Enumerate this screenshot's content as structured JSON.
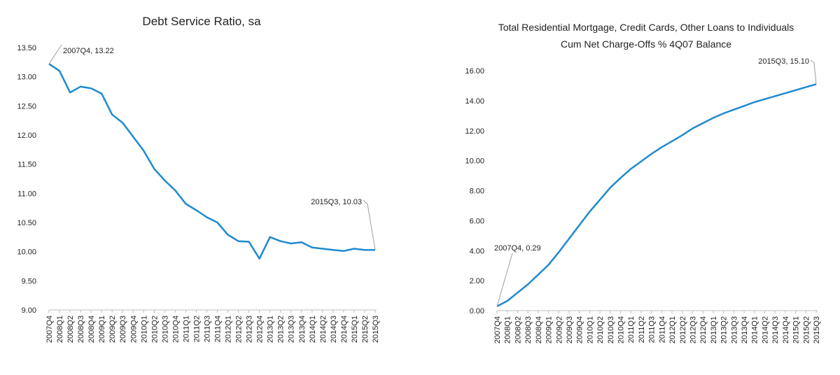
{
  "chart_data": [
    {
      "type": "line",
      "title": "Debt Service Ratio, sa",
      "xlabel": "",
      "ylabel": "",
      "ylim": [
        9.0,
        13.5
      ],
      "yticks": [
        "9.00",
        "9.50",
        "10.00",
        "10.50",
        "11.00",
        "11.50",
        "12.00",
        "12.50",
        "13.00",
        "13.50"
      ],
      "categories": [
        "2007Q4",
        "2008Q1",
        "2008Q2",
        "2008Q3",
        "2008Q4",
        "2009Q1",
        "2009Q2",
        "2009Q3",
        "2009Q4",
        "2010Q1",
        "2010Q2",
        "2010Q3",
        "2010Q4",
        "2011Q1",
        "2011Q2",
        "2011Q3",
        "2011Q4",
        "2012Q1",
        "2012Q2",
        "2012Q3",
        "2012Q4",
        "2013Q1",
        "2013Q2",
        "2013Q3",
        "2013Q4",
        "2014Q1",
        "2014Q2",
        "2014Q3",
        "2014Q4",
        "2015Q1",
        "2015Q2",
        "2015Q3"
      ],
      "values": [
        13.22,
        13.1,
        12.73,
        12.83,
        12.8,
        12.71,
        12.35,
        12.21,
        11.97,
        11.73,
        11.42,
        11.22,
        11.05,
        10.82,
        10.71,
        10.59,
        10.5,
        10.29,
        10.18,
        10.17,
        9.88,
        10.25,
        10.18,
        10.14,
        10.16,
        10.07,
        10.05,
        10.03,
        10.01,
        10.05,
        10.03,
        10.03
      ],
      "color": "#1f8ad0",
      "grid": false,
      "annotations": [
        {
          "label": "2007Q4, 13.22",
          "index": 0
        },
        {
          "label": "2015Q3, 10.03",
          "index": 31
        }
      ]
    },
    {
      "type": "line",
      "title": "Total Residential Mortgage, Credit Cards, Other Loans to Individuals",
      "subtitle": "Cum Net Charge-Offs % 4Q07 Balance",
      "xlabel": "",
      "ylabel": "",
      "ylim": [
        0.0,
        16.0
      ],
      "yticks": [
        "0.00",
        "2.00",
        "4.00",
        "6.00",
        "8.00",
        "10.00",
        "12.00",
        "14.00",
        "16.00"
      ],
      "categories": [
        "2007Q4",
        "2008Q1",
        "2008Q2",
        "2008Q3",
        "2008Q4",
        "2009Q1",
        "2009Q2",
        "2009Q3",
        "2009Q4",
        "2010Q1",
        "2010Q2",
        "2010Q3",
        "2010Q4",
        "2011Q1",
        "2011Q2",
        "2011Q3",
        "2011Q4",
        "2012Q1",
        "2012Q2",
        "2012Q3",
        "2012Q4",
        "2013Q1",
        "2013Q2",
        "2013Q3",
        "2013Q4",
        "2014Q1",
        "2014Q2",
        "2014Q3",
        "2014Q4",
        "2015Q1",
        "2015Q2",
        "2015Q3"
      ],
      "values": [
        0.29,
        0.65,
        1.2,
        1.75,
        2.4,
        3.05,
        3.9,
        4.8,
        5.7,
        6.6,
        7.4,
        8.2,
        8.85,
        9.45,
        9.95,
        10.45,
        10.9,
        11.3,
        11.7,
        12.15,
        12.5,
        12.85,
        13.15,
        13.4,
        13.65,
        13.9,
        14.1,
        14.3,
        14.5,
        14.7,
        14.9,
        15.1
      ],
      "color": "#1f8ad0",
      "grid": false,
      "annotations": [
        {
          "label": "2007Q4, 0.29",
          "index": 0
        },
        {
          "label": "2015Q3, 15.10",
          "index": 31
        }
      ]
    }
  ]
}
